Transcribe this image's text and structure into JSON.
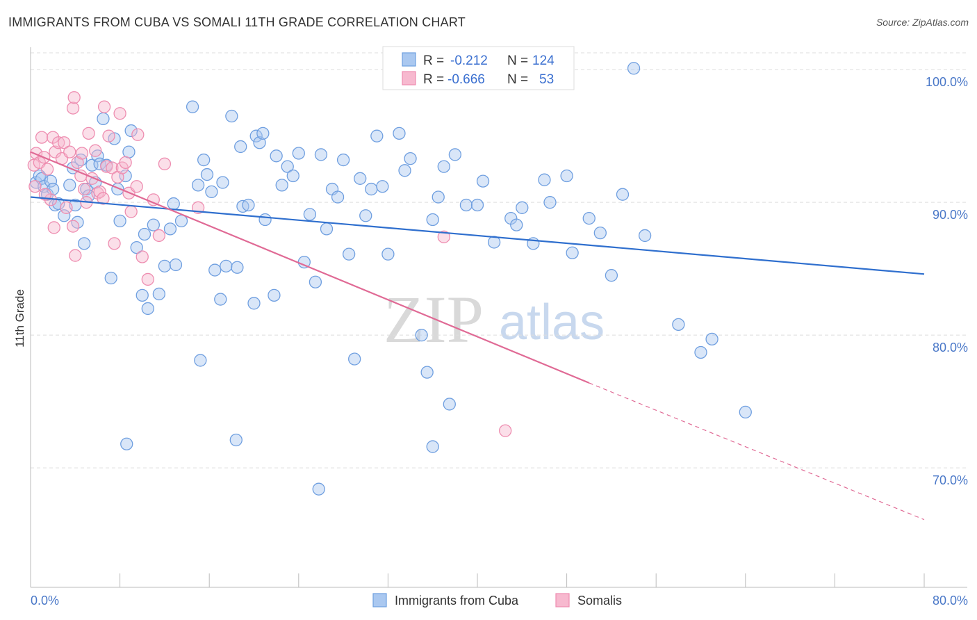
{
  "header": {
    "title": "IMMIGRANTS FROM CUBA VS SOMALI 11TH GRADE CORRELATION CHART",
    "source": "Source: ZipAtlas.com"
  },
  "watermark": {
    "zip": "ZIP",
    "atlas": "atlas"
  },
  "legend": {
    "rows": [
      {
        "r_label": "R =",
        "r_value": "-0.212",
        "n_label": "N =",
        "n_value": "124"
      },
      {
        "r_label": "R =",
        "r_value": "-0.666",
        "n_label": "N =",
        "n_value": "53"
      }
    ]
  },
  "chart_data": {
    "type": "scatter",
    "title": "IMMIGRANTS FROM CUBA VS SOMALI 11TH GRADE CORRELATION CHART",
    "xlabel": "",
    "ylabel": "11th Grade",
    "xlim": [
      0,
      80
    ],
    "ylim": [
      61,
      102
    ],
    "x_tick_labels": [
      "0.0%",
      "80.0%"
    ],
    "y_ticks": [
      70,
      80,
      90,
      100
    ],
    "y_tick_labels": [
      "70.0%",
      "80.0%",
      "90.0%",
      "100.0%"
    ],
    "grid": true,
    "legend_position": "top-center and bottom",
    "colors": {
      "cuba_fill": "#aac8f0",
      "cuba_stroke": "#6f9fe0",
      "cuba_line": "#2f6fce",
      "somali_fill": "#f7b9cf",
      "somali_stroke": "#ee8db0",
      "somali_line": "#e06a95"
    },
    "series": [
      {
        "name": "Immigrants from Cuba",
        "trend": {
          "x": [
            0,
            80
          ],
          "y": [
            90.4,
            84.6
          ]
        },
        "points": [
          [
            0.5,
            91.5
          ],
          [
            0.8,
            92.0
          ],
          [
            1.0,
            91.8
          ],
          [
            1.2,
            91.2
          ],
          [
            1.5,
            90.6
          ],
          [
            1.8,
            91.6
          ],
          [
            2.0,
            91.0
          ],
          [
            2.2,
            89.8
          ],
          [
            2.5,
            89.9
          ],
          [
            3.0,
            89.0
          ],
          [
            3.5,
            91.3
          ],
          [
            3.8,
            92.6
          ],
          [
            4.0,
            89.8
          ],
          [
            4.2,
            88.5
          ],
          [
            4.5,
            93.2
          ],
          [
            4.8,
            86.9
          ],
          [
            5.0,
            91.0
          ],
          [
            5.2,
            90.5
          ],
          [
            5.5,
            92.8
          ],
          [
            5.8,
            91.5
          ],
          [
            6.0,
            93.5
          ],
          [
            6.2,
            92.9
          ],
          [
            6.5,
            96.3
          ],
          [
            6.8,
            92.8
          ],
          [
            7.2,
            84.3
          ],
          [
            7.5,
            94.8
          ],
          [
            7.8,
            91.0
          ],
          [
            8.0,
            88.6
          ],
          [
            8.5,
            92.0
          ],
          [
            8.8,
            93.8
          ],
          [
            9.0,
            95.4
          ],
          [
            9.5,
            86.6
          ],
          [
            10.0,
            83.0
          ],
          [
            10.2,
            87.6
          ],
          [
            10.5,
            82.0
          ],
          [
            11.0,
            88.3
          ],
          [
            11.5,
            83.1
          ],
          [
            12.0,
            85.2
          ],
          [
            12.5,
            88.0
          ],
          [
            12.8,
            89.9
          ],
          [
            13.0,
            85.3
          ],
          [
            13.5,
            88.6
          ],
          [
            14.5,
            97.2
          ],
          [
            15.0,
            91.3
          ],
          [
            15.2,
            78.1
          ],
          [
            15.5,
            93.2
          ],
          [
            15.8,
            92.1
          ],
          [
            16.2,
            90.8
          ],
          [
            16.5,
            84.9
          ],
          [
            17.0,
            82.7
          ],
          [
            17.2,
            91.5
          ],
          [
            17.5,
            85.2
          ],
          [
            18.0,
            96.5
          ],
          [
            18.5,
            85.1
          ],
          [
            18.8,
            94.2
          ],
          [
            19.0,
            89.7
          ],
          [
            19.5,
            89.8
          ],
          [
            20.0,
            82.4
          ],
          [
            20.2,
            95.0
          ],
          [
            20.5,
            94.5
          ],
          [
            20.8,
            95.2
          ],
          [
            21.0,
            88.7
          ],
          [
            21.8,
            83.0
          ],
          [
            22.0,
            93.5
          ],
          [
            22.5,
            91.3
          ],
          [
            23.0,
            92.7
          ],
          [
            23.5,
            92.0
          ],
          [
            24.0,
            93.7
          ],
          [
            24.5,
            85.5
          ],
          [
            25.0,
            89.1
          ],
          [
            25.5,
            84.0
          ],
          [
            26.0,
            93.6
          ],
          [
            26.5,
            88.0
          ],
          [
            27.0,
            91.0
          ],
          [
            27.5,
            90.4
          ],
          [
            28.0,
            93.2
          ],
          [
            28.5,
            86.1
          ],
          [
            29.0,
            78.2
          ],
          [
            29.5,
            91.8
          ],
          [
            30.0,
            89.0
          ],
          [
            30.5,
            91.0
          ],
          [
            31.0,
            95.0
          ],
          [
            31.5,
            91.2
          ],
          [
            32.0,
            86.1
          ],
          [
            33.0,
            95.2
          ],
          [
            33.5,
            92.4
          ],
          [
            34.0,
            93.3
          ],
          [
            35.0,
            80.0
          ],
          [
            35.5,
            77.2
          ],
          [
            36.0,
            88.7
          ],
          [
            36.5,
            90.4
          ],
          [
            37.0,
            92.7
          ],
          [
            37.5,
            74.8
          ],
          [
            38.0,
            93.6
          ],
          [
            39.0,
            89.8
          ],
          [
            40.0,
            89.8
          ],
          [
            40.5,
            91.6
          ],
          [
            41.5,
            87.0
          ],
          [
            43.0,
            88.8
          ],
          [
            43.5,
            88.3
          ],
          [
            44.0,
            89.6
          ],
          [
            45.0,
            86.9
          ],
          [
            46.0,
            91.7
          ],
          [
            46.5,
            90.0
          ],
          [
            48.0,
            92.0
          ],
          [
            48.5,
            86.2
          ],
          [
            50.0,
            88.8
          ],
          [
            51.0,
            87.7
          ],
          [
            52.0,
            84.5
          ],
          [
            53.0,
            90.6
          ],
          [
            54.0,
            100.1
          ],
          [
            55.0,
            87.5
          ],
          [
            58.0,
            80.8
          ],
          [
            60.0,
            78.7
          ],
          [
            61.0,
            79.7
          ],
          [
            64.0,
            74.2
          ],
          [
            8.6,
            71.8
          ],
          [
            18.4,
            72.1
          ],
          [
            25.8,
            68.4
          ],
          [
            36.0,
            71.6
          ]
        ]
      },
      {
        "name": "Somalis",
        "trend": {
          "x": [
            0,
            50
          ],
          "y": [
            93.8,
            76.4
          ]
        },
        "trend_extension": {
          "x": [
            50,
            80
          ],
          "y": [
            76.4,
            66.1
          ]
        },
        "points": [
          [
            0.3,
            92.8
          ],
          [
            0.5,
            93.7
          ],
          [
            0.8,
            93.0
          ],
          [
            1.0,
            94.9
          ],
          [
            1.2,
            93.4
          ],
          [
            1.5,
            92.5
          ],
          [
            1.8,
            90.2
          ],
          [
            2.0,
            94.9
          ],
          [
            2.2,
            93.8
          ],
          [
            2.5,
            94.5
          ],
          [
            2.8,
            93.3
          ],
          [
            3.0,
            94.5
          ],
          [
            3.2,
            89.6
          ],
          [
            3.5,
            93.8
          ],
          [
            3.8,
            88.2
          ],
          [
            4.0,
            86.0
          ],
          [
            4.2,
            93.0
          ],
          [
            4.5,
            92.0
          ],
          [
            4.8,
            91.0
          ],
          [
            5.0,
            90.0
          ],
          [
            5.2,
            95.2
          ],
          [
            5.5,
            91.8
          ],
          [
            5.8,
            93.9
          ],
          [
            6.0,
            90.7
          ],
          [
            6.2,
            90.8
          ],
          [
            6.5,
            90.3
          ],
          [
            6.8,
            92.7
          ],
          [
            7.0,
            95.0
          ],
          [
            7.3,
            92.6
          ],
          [
            7.5,
            86.9
          ],
          [
            7.8,
            91.9
          ],
          [
            8.0,
            96.7
          ],
          [
            8.2,
            92.6
          ],
          [
            8.5,
            93.0
          ],
          [
            8.8,
            90.7
          ],
          [
            9.0,
            89.3
          ],
          [
            9.5,
            91.2
          ],
          [
            10.0,
            85.9
          ],
          [
            10.5,
            84.2
          ],
          [
            11.0,
            90.2
          ],
          [
            11.5,
            87.5
          ],
          [
            12.0,
            92.9
          ],
          [
            15.0,
            89.6
          ],
          [
            37.0,
            87.4
          ],
          [
            42.5,
            72.8
          ],
          [
            3.8,
            97.1
          ],
          [
            3.9,
            97.9
          ],
          [
            2.1,
            88.1
          ],
          [
            6.6,
            97.2
          ],
          [
            0.4,
            91.2
          ],
          [
            1.3,
            90.6
          ],
          [
            4.6,
            93.7
          ],
          [
            9.6,
            95.1
          ]
        ]
      }
    ]
  },
  "bottom_legend": {
    "items": [
      {
        "label": "Immigrants from Cuba"
      },
      {
        "label": "Somalis"
      }
    ]
  }
}
